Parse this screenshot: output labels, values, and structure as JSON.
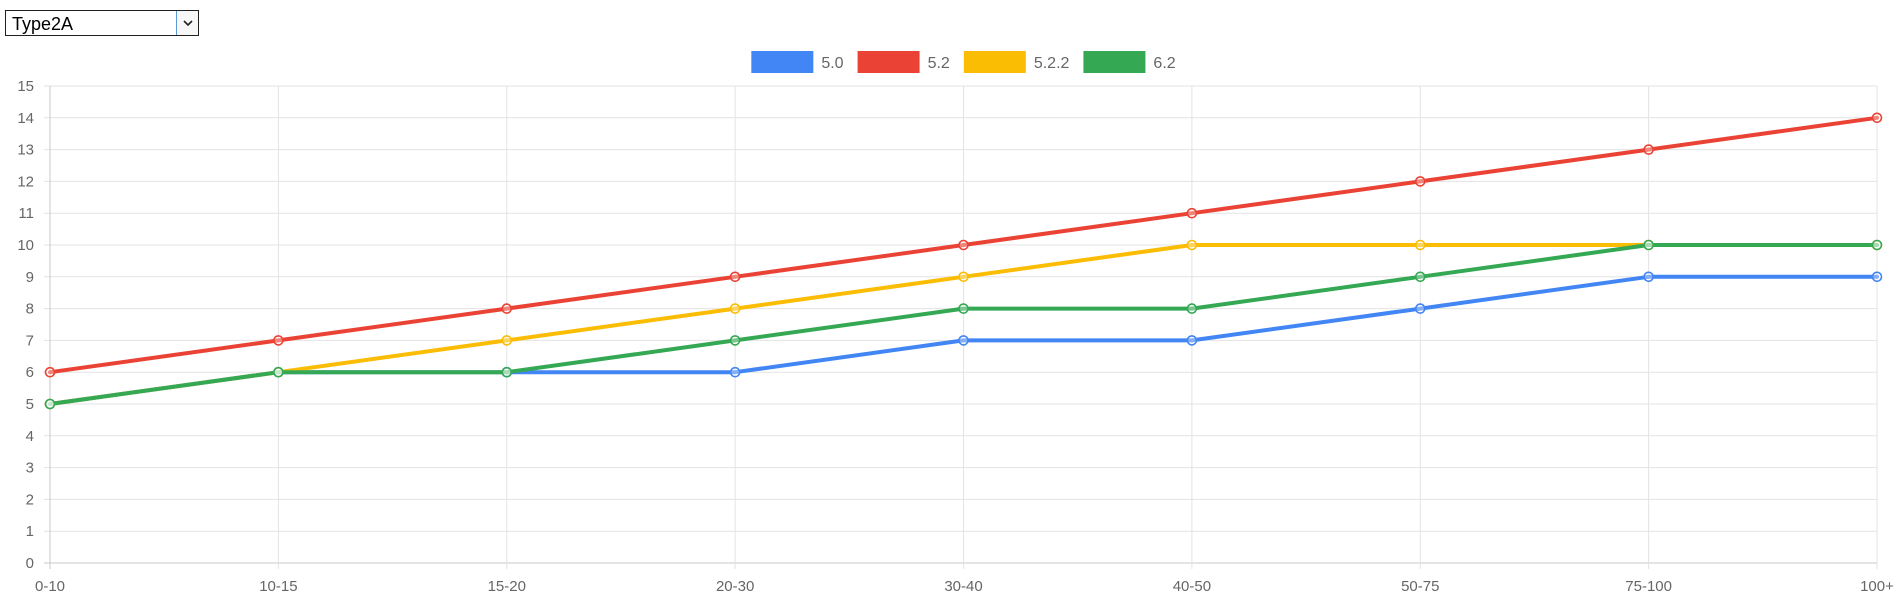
{
  "selector": {
    "selected": "Type2A"
  },
  "colors": {
    "grid": "#e3e3e3",
    "axis": "#c8c8c8",
    "tick_label": "#666666"
  },
  "chart_data": {
    "type": "line",
    "categories": [
      "0-10",
      "10-15",
      "15-20",
      "20-30",
      "30-40",
      "40-50",
      "50-75",
      "75-100",
      "100+"
    ],
    "series": [
      {
        "name": "5.0",
        "color": "#4285f4",
        "values": [
          5,
          6,
          6,
          6,
          7,
          7,
          8,
          9,
          9
        ]
      },
      {
        "name": "5.2",
        "color": "#ea4335",
        "values": [
          6,
          7,
          8,
          9,
          10,
          11,
          12,
          13,
          14
        ]
      },
      {
        "name": "5.2.2",
        "color": "#fbbc04",
        "values": [
          5,
          6,
          7,
          8,
          9,
          10,
          10,
          10,
          10
        ]
      },
      {
        "name": "6.2",
        "color": "#34a853",
        "values": [
          5,
          6,
          6,
          7,
          8,
          8,
          9,
          10,
          10
        ]
      }
    ],
    "ylim": [
      0,
      15
    ],
    "yticks": [
      0,
      1,
      2,
      3,
      4,
      5,
      6,
      7,
      8,
      9,
      10,
      11,
      12,
      13,
      14,
      15
    ],
    "grid": true,
    "legend_position": "top-center",
    "title": "",
    "xlabel": "",
    "ylabel": ""
  }
}
